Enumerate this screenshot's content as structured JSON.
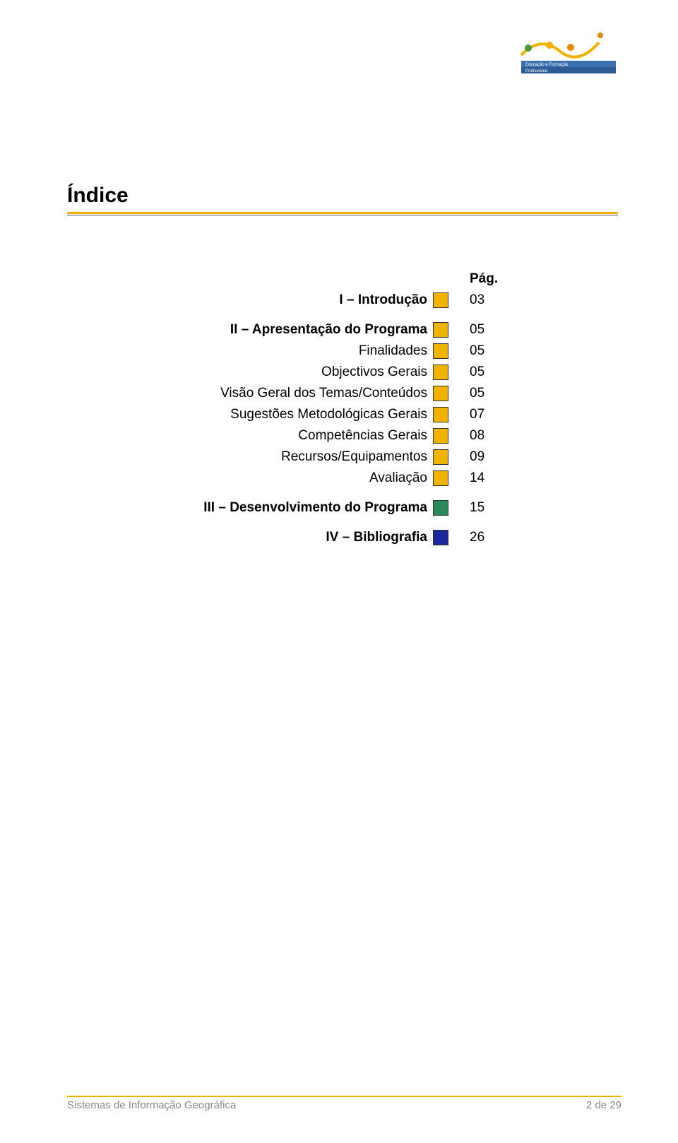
{
  "logo": {
    "wave_color": "#f0b400",
    "dots": [
      "#4a9a3a",
      "#f0b400",
      "#e28a00"
    ],
    "accent_dot": "#e28a00",
    "band_top": "#3a6fb0",
    "band_bottom": "#2f5c95",
    "logo_text_line1": "Educação e",
    "logo_text_line2": "Formação Profissional"
  },
  "title": "Índice",
  "underline": {
    "primary": "#f0b400",
    "secondary": "#555555"
  },
  "page_header": "Pág.",
  "toc": [
    {
      "label": "I – Introdução",
      "bold": true,
      "color": "#f0b400",
      "page": "03",
      "spacer_after": true
    },
    {
      "label": "II – Apresentação do Programa",
      "bold": true,
      "color": "#f0b400",
      "page": "05"
    },
    {
      "label": "Finalidades",
      "bold": false,
      "color": "#f0b400",
      "page": "05"
    },
    {
      "label": "Objectivos Gerais",
      "bold": false,
      "color": "#f0b400",
      "page": "05"
    },
    {
      "label": "Visão Geral dos Temas/Conteúdos",
      "bold": false,
      "color": "#f0b400",
      "page": "05"
    },
    {
      "label": "Sugestões Metodológicas Gerais",
      "bold": false,
      "color": "#f0b400",
      "page": "07"
    },
    {
      "label": "Competências Gerais",
      "bold": false,
      "color": "#f0b400",
      "page": "08"
    },
    {
      "label": "Recursos/Equipamentos",
      "bold": false,
      "color": "#f0b400",
      "page": "09"
    },
    {
      "label": "Avaliação",
      "bold": false,
      "color": "#f0b400",
      "page": "14",
      "spacer_after": true
    },
    {
      "label": "III – Desenvolvimento do Programa",
      "bold": true,
      "color": "#2a8a5a",
      "page": "15",
      "spacer_after": true
    },
    {
      "label": "IV – Bibliografia",
      "bold": true,
      "color": "#1a2a9a",
      "page": "26"
    }
  ],
  "footer": {
    "left": "Sistemas de Informação Geográfica",
    "right": "2 de 29",
    "line_color": "#f0b400",
    "text_color": "#888888"
  }
}
